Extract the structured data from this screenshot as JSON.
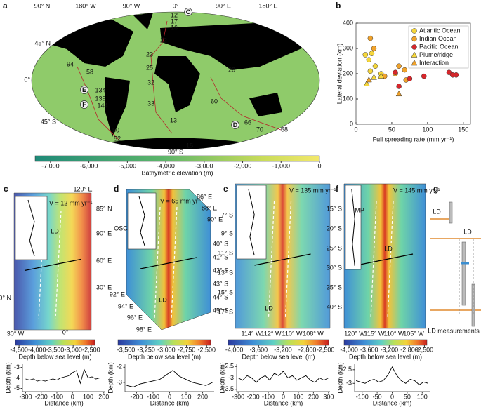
{
  "panel_a": {
    "label": "a",
    "top_labels": [
      "90° N",
      "180° W",
      "90° W",
      "0°",
      "90° E",
      "180° E"
    ],
    "left_labels": [
      "45° N",
      "0°",
      "45° S"
    ],
    "bottom_label": "90° S",
    "sites": [
      "12",
      "17",
      "16",
      "22",
      "23",
      "25",
      "32",
      "33",
      "13",
      "15",
      "60",
      "28",
      "94",
      "58",
      "134",
      "139",
      "144",
      "50",
      "52",
      "66",
      "70",
      "68"
    ],
    "site_letters": [
      "C",
      "E",
      "F",
      "D"
    ],
    "colorbar": {
      "lim": [
        -7400,
        0
      ],
      "ticks": [
        {
          "value": -7000,
          "label": "-7,000"
        },
        {
          "value": -6000,
          "label": "-6,000"
        },
        {
          "value": -5000,
          "label": "-5,000"
        },
        {
          "value": -4000,
          "label": "-4,000"
        },
        {
          "value": -3000,
          "label": "-3,000"
        },
        {
          "value": -2000,
          "label": "-2,000"
        },
        {
          "value": -1000,
          "label": "-1,000"
        },
        0
      ],
      "title": "Bathymetric elevation (m)"
    }
  },
  "chart_data": {
    "type": "scatter",
    "label": "b",
    "xlabel": "Full spreading rate (mm yr⁻¹)",
    "ylabel": "Lateral deviation (km)",
    "xlim": [
      0,
      160
    ],
    "xticks": [
      0,
      50,
      100,
      150
    ],
    "ylim": [
      0,
      400
    ],
    "yticks": [
      0,
      100,
      200,
      300,
      400
    ],
    "legend": "upper right",
    "series": [
      {
        "name": "Atlantic Ocean",
        "color": "#f5d63b",
        "marker": "circle",
        "x": [
          13,
          18,
          22,
          27,
          20,
          35
        ],
        "values": [
          275,
          255,
          280,
          230,
          210,
          200
        ]
      },
      {
        "name": "Indian Ocean",
        "color": "#f0a22b",
        "marker": "circle",
        "x": [
          20,
          25,
          40,
          55,
          60,
          68,
          70
        ],
        "values": [
          340,
          300,
          190,
          200,
          230,
          215,
          175
        ]
      },
      {
        "name": "Pacific Ocean",
        "color": "#d7262b",
        "marker": "circle",
        "x": [
          55,
          60,
          75,
          95,
          130,
          135,
          140
        ],
        "values": [
          205,
          150,
          180,
          190,
          205,
          195,
          195
        ]
      },
      {
        "name": "Plume/ridge",
        "color": "#f5d63b",
        "marker": "triangle",
        "x": [
          15,
          25,
          35
        ],
        "values": [
          160,
          185,
          190
        ]
      },
      {
        "name": "Interaction",
        "color": "#f0a22b",
        "marker": "triangle",
        "x": [
          60,
          18
        ],
        "values": [
          120,
          175
        ]
      }
    ]
  },
  "panels": [
    {
      "label": "c",
      "velocity": "V = 12 mm yr⁻¹",
      "labels": [
        "120° E",
        "85° N",
        "90° E",
        "60° E",
        "30° E",
        "90° N",
        "30° W",
        "0°"
      ],
      "annotations": [
        "LD"
      ],
      "colorbar": {
        "lim": [
          -4600,
          -2400
        ],
        "ticks": [
          {
            "value": -4500,
            "label": "-4,500"
          },
          {
            "value": -4000,
            "label": "-4,000"
          },
          {
            "value": -3500,
            "label": "-3,500"
          },
          {
            "value": -3000,
            "label": "-3,000"
          },
          {
            "value": -2500,
            "label": "-2,500"
          }
        ],
        "title": "Depth below sea level (m)"
      },
      "profile": {
        "xlabel": "Distance (km)",
        "ylabel": "Depth (km)",
        "xlim": [
          -320,
          210
        ],
        "xticks": [
          -300,
          -200,
          -100,
          0,
          100,
          200
        ],
        "ylim": [
          -5.3,
          -2.7
        ],
        "yticks": [
          -5,
          -4,
          -3
        ],
        "x": [
          -300,
          -275,
          -250,
          -225,
          -200,
          -175,
          -150,
          -125,
          -100,
          -75,
          -50,
          -25,
          0,
          25,
          50,
          75,
          100,
          125,
          150,
          175,
          200
        ],
        "values": [
          -4.1,
          -4.2,
          -4.1,
          -4.3,
          -4.2,
          -4.3,
          -4.2,
          -4.1,
          -4.2,
          -4.0,
          -3.9,
          -3.8,
          -3.5,
          -3.3,
          -4.5,
          -3.2,
          -4.0,
          -3.9,
          -4.1,
          -4.0,
          -4.0
        ]
      }
    },
    {
      "label": "d",
      "velocity": "V = 65 mm yr⁻¹",
      "labels": [
        "86° E",
        "88° E",
        "90° E",
        "40° S",
        "41° S",
        "42° S",
        "43° S",
        "44° S",
        "45° S",
        "92° E",
        "94° E",
        "96° E",
        "98° E"
      ],
      "annotations": [
        "OSC",
        "LD"
      ],
      "colorbar": {
        "lim": [
          -3600,
          -2450
        ],
        "ticks": [
          {
            "value": -3500,
            "label": "-3,500"
          },
          {
            "value": -3250,
            "label": "-3,250"
          },
          {
            "value": -3000,
            "label": "-3,000"
          },
          {
            "value": -2750,
            "label": "-2,750"
          },
          {
            "value": -2500,
            "label": "-2,500"
          }
        ],
        "title": "Depth below sea level (m)"
      },
      "profile": {
        "xlabel": "Distance (km)",
        "ylabel": "Depth (km)",
        "xlim": [
          -270,
          270
        ],
        "xticks": [
          -200,
          -100,
          0,
          100,
          200
        ],
        "ylim": [
          -3.6,
          -1.8
        ],
        "yticks": [
          -3,
          -2
        ],
        "x": [
          -260,
          -220,
          -180,
          -140,
          -100,
          -60,
          -20,
          20,
          60,
          100,
          140,
          180,
          220,
          260
        ],
        "values": [
          -3.2,
          -3.3,
          -3.1,
          -3.0,
          -2.9,
          -2.8,
          -2.5,
          -2.2,
          -2.6,
          -2.8,
          -3.0,
          -3.1,
          -3.2,
          -3.0
        ]
      }
    },
    {
      "label": "e",
      "velocity": "V = 135 mm yr⁻¹",
      "labels": [
        "7° S",
        "9° S",
        "11° S",
        "13° S",
        "15° S",
        "17° S",
        "114° W",
        "112° W",
        "110° W",
        "108° W"
      ],
      "annotations": [
        "LD"
      ],
      "colorbar": {
        "lim": [
          -4100,
          -2450
        ],
        "ticks": [
          {
            "value": -4000,
            "label": "-4,000"
          },
          {
            "value": -3600,
            "label": "-3,600"
          },
          {
            "value": -3200,
            "label": "-3,200"
          },
          {
            "value": -2800,
            "label": "-2,800"
          },
          {
            "value": -2500,
            "label": "-2,500"
          }
        ],
        "title": "Depth below sea level (m)"
      },
      "profile": {
        "xlabel": "Distance (km)",
        "ylabel": "Depth (km)",
        "xlim": [
          -310,
          310
        ],
        "xticks": [
          -300,
          -200,
          -100,
          0,
          100,
          200,
          300
        ],
        "ylim": [
          -3.6,
          -2.4
        ],
        "yticks": [
          -3.5,
          -3,
          -2.5
        ],
        "x": [
          -300,
          -270,
          -240,
          -210,
          -180,
          -150,
          -120,
          -90,
          -60,
          -30,
          0,
          30,
          60,
          90,
          120,
          150,
          180,
          210,
          240,
          270,
          300
        ],
        "values": [
          -3.0,
          -3.1,
          -2.9,
          -3.0,
          -3.2,
          -3.0,
          -2.9,
          -3.1,
          -2.8,
          -2.9,
          -2.7,
          -3.0,
          -2.9,
          -3.1,
          -3.0,
          -2.9,
          -3.1,
          -3.2,
          -3.0,
          -3.1,
          -3.0
        ]
      }
    },
    {
      "label": "f",
      "velocity": "V = 145 mm yr⁻¹",
      "labels": [
        "15° S",
        "20° S",
        "25° S",
        "30° S",
        "35° S",
        "40° S",
        "120° W",
        "115° W",
        "110° W",
        "105° W"
      ],
      "annotations": [
        "MP",
        "LD"
      ],
      "colorbar": {
        "lim": [
          -4100,
          -2450
        ],
        "ticks": [
          {
            "value": -4000,
            "label": "-4,000"
          },
          {
            "value": -3600,
            "label": "-3,600"
          },
          {
            "value": -3200,
            "label": "-3,200"
          },
          {
            "value": -2800,
            "label": "-2,800"
          },
          {
            "value": -2500,
            "label": "-2,500"
          }
        ],
        "title": "Depth below sea level (m)"
      },
      "profile": {
        "xlabel": "Distance (km)",
        "ylabel": "Depth (km)",
        "xlim": [
          -125,
          125
        ],
        "xticks": [
          -100,
          -50,
          0,
          50,
          100
        ],
        "ylim": [
          -3.3,
          -2.3
        ],
        "yticks": [
          -3,
          -2.5
        ],
        "x": [
          -120,
          -105,
          -90,
          -75,
          -60,
          -45,
          -30,
          -15,
          0,
          15,
          30,
          45,
          60,
          75,
          90,
          105,
          120
        ],
        "values": [
          -2.9,
          -2.95,
          -3.0,
          -2.9,
          -2.85,
          -2.95,
          -2.9,
          -2.7,
          -2.4,
          -2.7,
          -2.9,
          -3.0,
          -2.85,
          -2.9,
          -3.05,
          -2.95,
          -3.0
        ]
      }
    }
  ],
  "panel_g": {
    "label": "g",
    "annotations": [
      "LD",
      "LD"
    ],
    "caption": "LD measurements"
  }
}
